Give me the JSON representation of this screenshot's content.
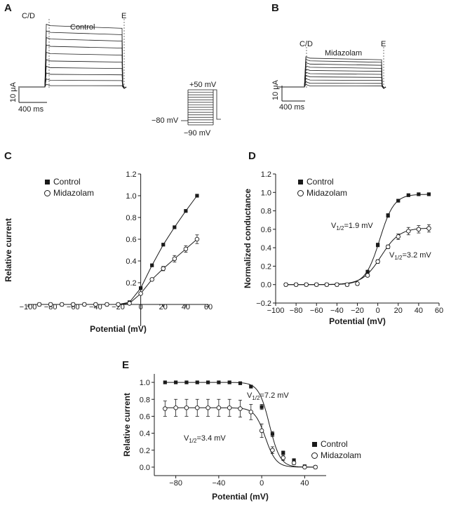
{
  "panels": {
    "A": {
      "label": "A",
      "trace_name": "Control",
      "marker_cd": "C/D",
      "marker_e": "E",
      "scale_current": "10 μA",
      "scale_time": "400 ms",
      "trace_levels": [
        0.02,
        0.1,
        0.19,
        0.29,
        0.39,
        0.5,
        0.61,
        0.72,
        0.82,
        0.92
      ]
    },
    "B": {
      "label": "B",
      "trace_name": "Midazolam",
      "marker_cd": "C/D",
      "marker_e": "E",
      "scale_current": "10 μA",
      "scale_time": "400 ms",
      "trace_levels": [
        0.02,
        0.07,
        0.13,
        0.19,
        0.25,
        0.31,
        0.37,
        0.43,
        0.49,
        0.54
      ]
    },
    "protocol": {
      "top": "+50 mV",
      "hold": "−80 mV",
      "bottom": "−90 mV",
      "steps": 14
    },
    "C": {
      "label": "C"
    },
    "D": {
      "label": "D",
      "v_control": "V",
      "v_control_sub": "1/2",
      "v_control_val": "=1.9 mV",
      "v_mid": "V",
      "v_mid_sub": "1/2",
      "v_mid_val": "=3.2 mV"
    },
    "E": {
      "label": "E",
      "v_control": "V",
      "v_control_sub": "1/2",
      "v_control_val": "=7.2 mV",
      "v_mid": "V",
      "v_mid_sub": "1/2",
      "v_mid_val": "=3.4 mV"
    }
  },
  "chart_data": [
    {
      "id": "C",
      "type": "line",
      "xlabel": "Potential (mV)",
      "ylabel": "Relative current",
      "xlim": [
        -100,
        60
      ],
      "ylim": [
        -0.2,
        1.2
      ],
      "xticks": [
        "−100",
        "−80",
        "−60",
        "−40",
        "−20",
        "0",
        "20",
        "40",
        "60"
      ],
      "xtick_values": [
        -100,
        -80,
        -60,
        -40,
        -20,
        0,
        20,
        40,
        60
      ],
      "yticks": [
        "0.2",
        "0.4",
        "0.6",
        "0.8",
        "1.0",
        "1.2"
      ],
      "ytick_values": [
        0.2,
        0.4,
        0.6,
        0.8,
        1.0,
        1.2
      ],
      "legend": "top-left",
      "x": [
        -90,
        -80,
        -70,
        -60,
        -50,
        -40,
        -30,
        -20,
        -10,
        0,
        10,
        20,
        30,
        40,
        50
      ],
      "series": [
        {
          "name": "Control",
          "marker": "filled-square",
          "values": [
            0,
            0,
            0,
            0,
            0,
            0,
            0,
            0,
            0.02,
            0.15,
            0.36,
            0.55,
            0.71,
            0.86,
            1.0
          ]
        },
        {
          "name": "Midazolam",
          "marker": "open-circle",
          "values": [
            0,
            0,
            0,
            0,
            0,
            0,
            0,
            0,
            0.01,
            0.1,
            0.23,
            0.33,
            0.42,
            0.51,
            0.6
          ],
          "errors": [
            0,
            0,
            0,
            0,
            0,
            0,
            0,
            0,
            0,
            0.01,
            0.01,
            0.02,
            0.03,
            0.03,
            0.04
          ]
        }
      ]
    },
    {
      "id": "D",
      "type": "line",
      "xlabel": "Potential (mV)",
      "ylabel": "Normalized conductance",
      "xlim": [
        -100,
        60
      ],
      "ylim": [
        -0.2,
        1.2
      ],
      "xticks": [
        "−100",
        "−80",
        "−60",
        "−40",
        "−20",
        "0",
        "20",
        "40",
        "60"
      ],
      "xtick_values": [
        -100,
        -80,
        -60,
        -40,
        -20,
        0,
        20,
        40,
        60
      ],
      "yticks": [
        "−0.2",
        "0.0",
        "0.2",
        "0.4",
        "0.6",
        "0.8",
        "1.0",
        "1.2"
      ],
      "ytick_values": [
        -0.2,
        0.0,
        0.2,
        0.4,
        0.6,
        0.8,
        1.0,
        1.2
      ],
      "legend": "top-left",
      "x": [
        -90,
        -80,
        -70,
        -60,
        -50,
        -40,
        -30,
        -20,
        -10,
        0,
        10,
        20,
        30,
        40,
        50
      ],
      "series": [
        {
          "name": "Control",
          "marker": "filled-square",
          "values": [
            0,
            0,
            0,
            0,
            0,
            0,
            0,
            0.01,
            0.14,
            0.43,
            0.75,
            0.91,
            0.97,
            0.98,
            0.98
          ],
          "errors": [
            0,
            0,
            0,
            0,
            0,
            0,
            0,
            0,
            0.01,
            0.02,
            0.02,
            0.01,
            0.01,
            0.01,
            0.01
          ]
        },
        {
          "name": "Midazolam",
          "marker": "open-circle",
          "values": [
            0,
            0,
            0,
            0,
            0,
            0,
            0,
            0.01,
            0.1,
            0.25,
            0.41,
            0.52,
            0.58,
            0.6,
            0.61
          ],
          "errors": [
            0,
            0,
            0,
            0,
            0,
            0,
            0,
            0,
            0.01,
            0.02,
            0.02,
            0.03,
            0.04,
            0.04,
            0.04
          ]
        }
      ],
      "fit_control": {
        "v_half": 1.9,
        "slope": 7.0,
        "gmax": 0.98
      },
      "fit_midazolam": {
        "v_half": 3.2,
        "slope": 9.0,
        "gmax": 0.615
      }
    },
    {
      "id": "E",
      "type": "line",
      "xlabel": "Potential (mV)",
      "ylabel": "Relative current",
      "xlim": [
        -100,
        60
      ],
      "ylim": [
        -0.1,
        1.1
      ],
      "xticks": [
        "−80",
        "−40",
        "0",
        "40"
      ],
      "xtick_values": [
        -80,
        -40,
        0,
        40
      ],
      "yticks": [
        "0.0",
        "0.2",
        "0.4",
        "0.6",
        "0.8",
        "1.0"
      ],
      "ytick_values": [
        0.0,
        0.2,
        0.4,
        0.6,
        0.8,
        1.0
      ],
      "legend": "right",
      "x": [
        -90,
        -80,
        -70,
        -60,
        -50,
        -40,
        -30,
        -20,
        -10,
        0,
        10,
        20,
        30,
        40,
        50
      ],
      "series": [
        {
          "name": "Control",
          "marker": "filled-square",
          "values": [
            1.0,
            1.0,
            1.0,
            1.0,
            1.0,
            1.0,
            1.0,
            0.99,
            0.95,
            0.71,
            0.39,
            0.17,
            0.08,
            0.01,
            0.0
          ],
          "errors": [
            0,
            0,
            0,
            0,
            0,
            0,
            0,
            0,
            0.01,
            0.03,
            0.03,
            0.02,
            0.02,
            0.01,
            0
          ]
        },
        {
          "name": "Midazolam",
          "marker": "open-circle",
          "values": [
            0.69,
            0.7,
            0.7,
            0.7,
            0.7,
            0.7,
            0.7,
            0.69,
            0.65,
            0.43,
            0.2,
            0.11,
            0.05,
            0.0,
            0.0
          ],
          "errors": [
            0.09,
            0.1,
            0.1,
            0.1,
            0.1,
            0.1,
            0.1,
            0.1,
            0.09,
            0.08,
            0.04,
            0.03,
            0.02,
            0.01,
            0
          ]
        }
      ],
      "fit_control": {
        "v_half": 7.2,
        "slope": 5.0,
        "imax": 1.0
      },
      "fit_midazolam": {
        "v_half": 3.4,
        "slope": 5.0,
        "imax": 0.7
      }
    }
  ]
}
